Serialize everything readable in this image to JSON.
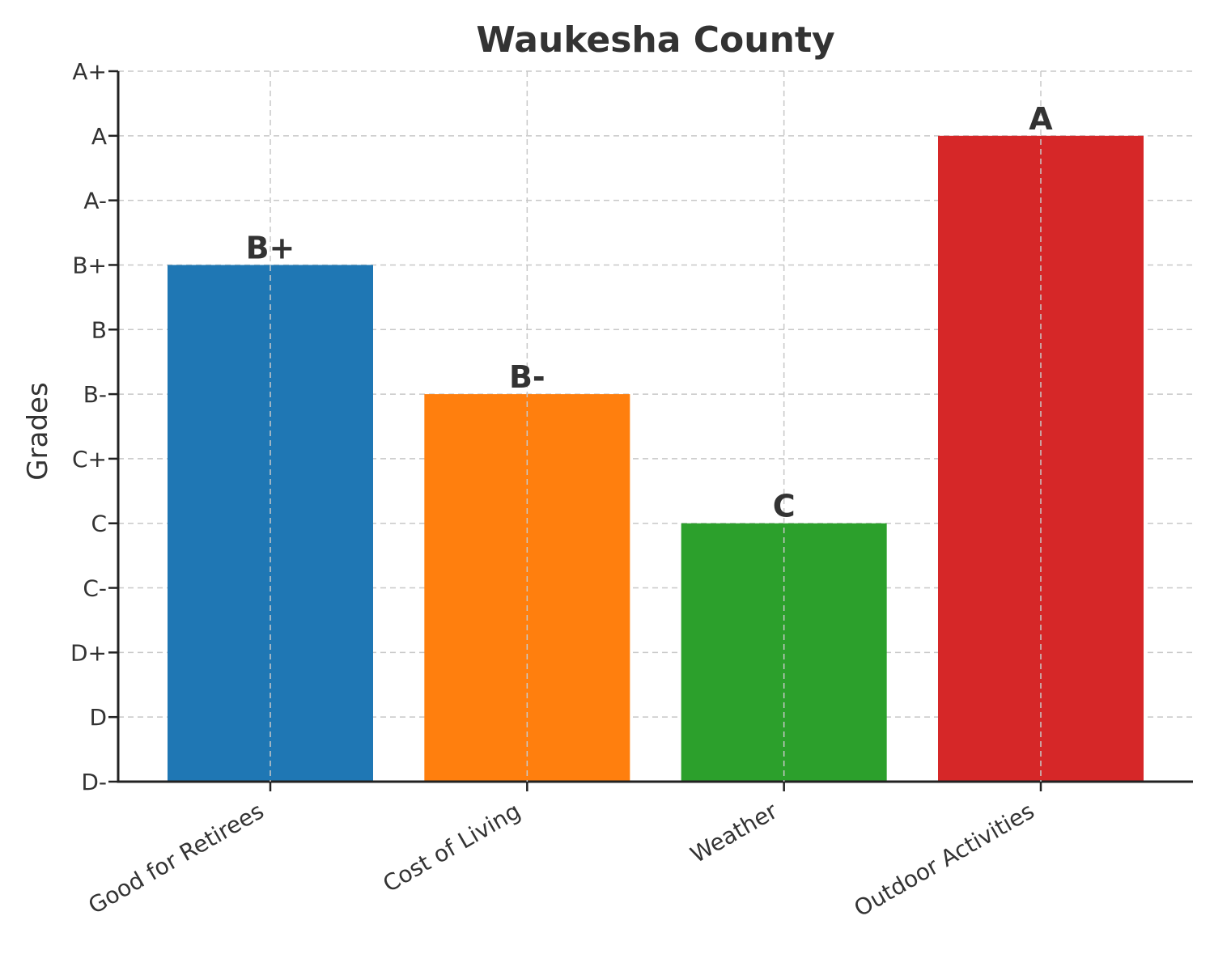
{
  "chart_data": {
    "type": "bar",
    "title": "Waukesha County",
    "xlabel": "",
    "ylabel": "Grades",
    "grade_scale": [
      "D-",
      "D",
      "D+",
      "C-",
      "C",
      "C+",
      "B-",
      "B",
      "B+",
      "A-",
      "A",
      "A+"
    ],
    "categories": [
      "Good for Retirees",
      "Cost of Living",
      "Weather",
      "Outdoor Activities"
    ],
    "values": [
      "B+",
      "B-",
      "C",
      "A"
    ],
    "colors": [
      "#1f77b4",
      "#ff7f0e",
      "#2ca02c",
      "#d62728"
    ],
    "ylim": [
      "D-",
      "A+"
    ],
    "grid": true
  }
}
